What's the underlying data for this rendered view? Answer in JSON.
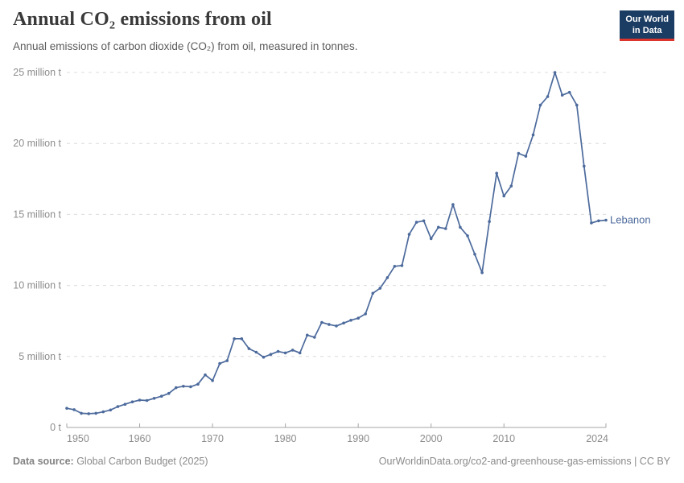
{
  "header": {
    "title": "Annual CO₂ emissions from oil",
    "subtitle": "Annual emissions of carbon dioxide (CO₂) from oil, measured in tonnes."
  },
  "logo": {
    "line1": "Our World",
    "line2": "in Data",
    "bg": "#1c3d63",
    "accent": "#dc352c"
  },
  "chart_data": {
    "type": "line",
    "title": "Annual CO₂ emissions from oil",
    "entity": "Lebanon",
    "values_unit": "million tonnes",
    "line_color": "#4c6a9c",
    "colors": {
      "grid": "#dcdcdc",
      "axis": "#a5a5a5",
      "axis_text": "#8c8c8c"
    },
    "grid": "horizontal-dashed",
    "legend_position": "end-of-line-label",
    "x_range": [
      1950,
      2024
    ],
    "ylim": [
      0,
      25
    ],
    "yticks": [
      {
        "value": 0,
        "label": "0 t"
      },
      {
        "value": 5,
        "label": "5 million t"
      },
      {
        "value": 10,
        "label": "10 million t"
      },
      {
        "value": 15,
        "label": "15 million t"
      },
      {
        "value": 20,
        "label": "20 million t"
      },
      {
        "value": 25,
        "label": "25 million t"
      }
    ],
    "xticks": [
      {
        "year": 1950,
        "tick": false,
        "align": "start"
      },
      {
        "year": 1960,
        "tick": true
      },
      {
        "year": 1970,
        "tick": true
      },
      {
        "year": 1980,
        "tick": true
      },
      {
        "year": 1990,
        "tick": true
      },
      {
        "year": 2000,
        "tick": true
      },
      {
        "year": 2010,
        "tick": true
      },
      {
        "year": 2024,
        "tick": false,
        "align": "end"
      }
    ],
    "x": [
      1950,
      1951,
      1952,
      1953,
      1954,
      1955,
      1956,
      1957,
      1958,
      1959,
      1960,
      1961,
      1962,
      1963,
      1964,
      1965,
      1966,
      1967,
      1968,
      1969,
      1970,
      1971,
      1972,
      1973,
      1974,
      1975,
      1976,
      1977,
      1978,
      1979,
      1980,
      1981,
      1982,
      1983,
      1984,
      1985,
      1986,
      1987,
      1988,
      1989,
      1990,
      1991,
      1992,
      1993,
      1994,
      1995,
      1996,
      1997,
      1998,
      1999,
      2000,
      2001,
      2002,
      2003,
      2004,
      2005,
      2006,
      2007,
      2008,
      2009,
      2010,
      2011,
      2012,
      2013,
      2014,
      2015,
      2016,
      2017,
      2018,
      2019,
      2020,
      2021,
      2022,
      2023,
      2024
    ],
    "values": [
      1.35,
      1.25,
      1.0,
      0.97,
      1.0,
      1.1,
      1.23,
      1.47,
      1.63,
      1.8,
      1.93,
      1.9,
      2.05,
      2.2,
      2.4,
      2.8,
      2.9,
      2.87,
      3.05,
      3.7,
      3.3,
      4.5,
      4.7,
      6.25,
      6.25,
      5.55,
      5.3,
      4.95,
      5.15,
      5.35,
      5.25,
      5.45,
      5.25,
      6.5,
      6.35,
      7.4,
      7.25,
      7.15,
      7.35,
      7.55,
      7.7,
      8.0,
      9.45,
      9.8,
      10.55,
      11.35,
      11.4,
      13.6,
      14.45,
      14.55,
      13.3,
      14.1,
      14.0,
      15.7,
      14.1,
      13.5,
      12.2,
      10.9,
      14.5,
      17.9,
      16.3,
      17.0,
      19.3,
      19.1,
      20.6,
      22.7,
      23.3,
      25.0,
      23.4,
      23.6,
      22.7,
      18.4,
      14.4,
      14.55,
      14.6
    ]
  },
  "footer": {
    "source_label": "Data source:",
    "source": " Global Carbon Budget (2025)",
    "right": "OurWorldinData.org/co2-and-greenhouse-gas-emissions | CC BY"
  }
}
